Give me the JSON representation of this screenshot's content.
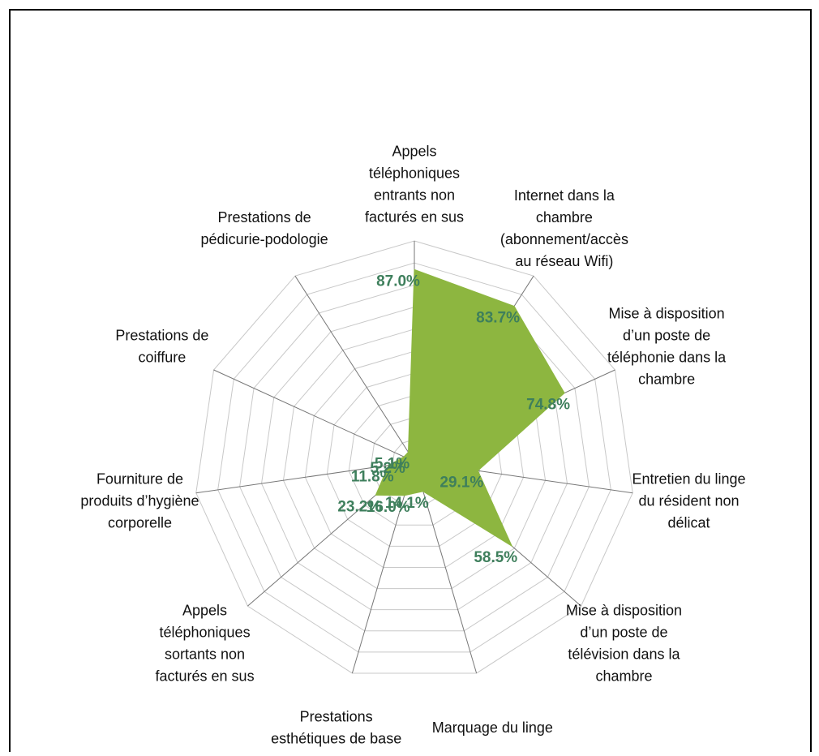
{
  "chart_data": {
    "type": "radar",
    "categories": [
      "Appels téléphoniques entrants non facturés en sus",
      "Internet dans la chambre (abonnement/accès au réseau Wifi)",
      "Mise à disposition d’un poste de téléphonie dans la chambre",
      "Entretien du linge du résident non délicat",
      "Mise à disposition d’un poste de télévision dans la chambre",
      "Marquage du linge",
      "Prestations esthétiques de base",
      "Appels téléphoniques sortants non facturés en sus",
      "Fourniture de produits d’hygiène corporelle",
      "Prestations de coiffure",
      "Prestations de pédicurie-podologie"
    ],
    "values": [
      87.0,
      83.7,
      74.8,
      29.1,
      58.5,
      14.1,
      16.0,
      23.2,
      11.8,
      5.2,
      5.1
    ],
    "value_labels": [
      "87.0%",
      "83.7%",
      "74.8%",
      "29.1%",
      "58.5%",
      "14.1%",
      "16.0%",
      "23.2%",
      "11.8%",
      "5.2%",
      "5.1%"
    ],
    "color": "#8db640",
    "ylim": [
      0,
      100
    ],
    "yticks": [
      0,
      10,
      20,
      30,
      40,
      50,
      60,
      70,
      80,
      90,
      100
    ],
    "grid": true
  }
}
